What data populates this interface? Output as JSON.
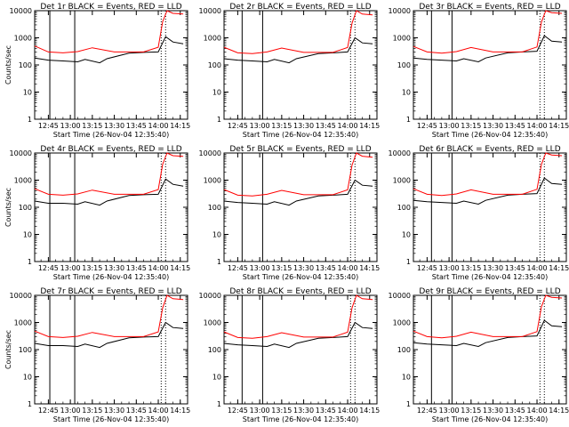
{
  "chart_data": [
    {
      "type": "line",
      "title": "Det 1r BLACK = Events, RED = LLD",
      "xlabel": "Start Time (26-Nov-04 12:35:40)",
      "ylabel": "Counts/sec",
      "yscale": "log",
      "ylim": [
        1,
        10000
      ],
      "xlim": [
        "12:35:40",
        "14:20:00"
      ],
      "xticks": [
        "12:45",
        "13:00",
        "13:15",
        "13:30",
        "13:45",
        "14:00",
        "14:15"
      ],
      "yticks": [
        "1",
        "10",
        "100",
        "1000",
        "10000"
      ],
      "grid": false,
      "vlines": {
        "solid": [
          "12:46",
          "13:03"
        ],
        "dotted": [
          "14:02",
          "14:05"
        ]
      },
      "series": [
        {
          "name": "Events",
          "color": "#000000",
          "x": [
            "12:35:40",
            "12:45",
            "12:55",
            "13:05",
            "13:10",
            "13:20",
            "13:25",
            "13:40",
            "13:50",
            "14:00",
            "14:05",
            "14:10",
            "14:17"
          ],
          "y": [
            180,
            150,
            140,
            130,
            160,
            120,
            170,
            270,
            290,
            300,
            1100,
            700,
            600
          ]
        },
        {
          "name": "LLD",
          "color": "#ff0000",
          "x": [
            "12:35:40",
            "12:45",
            "12:55",
            "13:05",
            "13:15",
            "13:30",
            "13:50",
            "14:00",
            "14:03",
            "14:06",
            "14:10",
            "14:17"
          ],
          "y": [
            500,
            300,
            280,
            310,
            430,
            300,
            300,
            450,
            4000,
            12000,
            8000,
            7500
          ]
        }
      ]
    },
    {
      "type": "line",
      "title": "Det 2r BLACK = Events, RED = LLD",
      "xlabel": "Start Time (26-Nov-04 12:35:40)",
      "ylabel": "",
      "yscale": "log",
      "ylim": [
        1,
        10000
      ],
      "xlim": [
        "12:35:40",
        "14:20:00"
      ],
      "xticks": [
        "12:45",
        "13:00",
        "13:15",
        "13:30",
        "13:45",
        "14:00",
        "14:15"
      ],
      "yticks": [
        "1",
        "10",
        "100",
        "1000",
        "10000"
      ],
      "grid": false,
      "vlines": {
        "solid": [
          "12:48",
          "13:02"
        ],
        "dotted": [
          "14:02",
          "14:05"
        ]
      },
      "series": [
        {
          "name": "Events",
          "color": "#000000",
          "x": [
            "12:35:40",
            "12:45",
            "12:55",
            "13:05",
            "13:10",
            "13:20",
            "13:25",
            "13:40",
            "13:50",
            "14:00",
            "14:05",
            "14:10",
            "14:17"
          ],
          "y": [
            170,
            150,
            140,
            130,
            160,
            120,
            170,
            260,
            280,
            300,
            1000,
            650,
            600
          ]
        },
        {
          "name": "LLD",
          "color": "#ff0000",
          "x": [
            "12:35:40",
            "12:45",
            "12:55",
            "13:05",
            "13:15",
            "13:30",
            "13:50",
            "14:00",
            "14:03",
            "14:06",
            "14:10",
            "14:17"
          ],
          "y": [
            450,
            280,
            260,
            300,
            420,
            290,
            290,
            440,
            3500,
            11000,
            7500,
            7000
          ]
        }
      ]
    },
    {
      "type": "line",
      "title": "Det 3r BLACK = Events, RED = LLD",
      "xlabel": "Start Time (26-Nov-04 12:35:40)",
      "ylabel": "",
      "yscale": "log",
      "ylim": [
        1,
        10000
      ],
      "xlim": [
        "12:35:40",
        "14:20:00"
      ],
      "xticks": [
        "12:45",
        "13:00",
        "13:15",
        "13:30",
        "13:45",
        "14:00",
        "14:15"
      ],
      "yticks": [
        "1",
        "10",
        "100",
        "1000",
        "10000"
      ],
      "grid": false,
      "vlines": {
        "solid": [
          "12:48",
          "13:02"
        ],
        "dotted": [
          "14:02",
          "14:05"
        ]
      },
      "series": [
        {
          "name": "Events",
          "color": "#000000",
          "x": [
            "12:35:40",
            "12:45",
            "12:55",
            "13:05",
            "13:10",
            "13:20",
            "13:25",
            "13:40",
            "13:50",
            "14:00",
            "14:05",
            "14:10",
            "14:17"
          ],
          "y": [
            180,
            160,
            150,
            140,
            170,
            130,
            180,
            280,
            300,
            320,
            1200,
            750,
            700
          ]
        },
        {
          "name": "LLD",
          "color": "#ff0000",
          "x": [
            "12:35:40",
            "12:45",
            "12:55",
            "13:05",
            "13:15",
            "13:30",
            "13:50",
            "14:00",
            "14:03",
            "14:06",
            "14:10",
            "14:17"
          ],
          "y": [
            480,
            300,
            270,
            310,
            440,
            300,
            300,
            460,
            3800,
            12000,
            8500,
            8000
          ]
        }
      ]
    },
    {
      "type": "line",
      "title": "Det 4r BLACK = Events, RED = LLD",
      "xlabel": "Start Time (26-Nov-04 12:35:40)",
      "ylabel": "Counts/sec",
      "yscale": "log",
      "ylim": [
        1,
        10000
      ],
      "xlim": [
        "12:35:40",
        "14:20:00"
      ],
      "xticks": [
        "12:45",
        "13:00",
        "13:15",
        "13:30",
        "13:45",
        "14:00",
        "14:15"
      ],
      "yticks": [
        "1",
        "10",
        "100",
        "1000",
        "10000"
      ],
      "grid": false,
      "vlines": {
        "solid": [
          "12:46",
          "13:03"
        ],
        "dotted": [
          "14:02",
          "14:05"
        ]
      },
      "series": [
        {
          "name": "Events",
          "color": "#000000",
          "x": [
            "12:35:40",
            "12:45",
            "12:55",
            "13:05",
            "13:10",
            "13:20",
            "13:25",
            "13:40",
            "13:50",
            "14:00",
            "14:05",
            "14:10",
            "14:17"
          ],
          "y": [
            170,
            140,
            140,
            130,
            160,
            120,
            170,
            270,
            290,
            300,
            1100,
            700,
            600
          ]
        },
        {
          "name": "LLD",
          "color": "#ff0000",
          "x": [
            "12:35:40",
            "12:45",
            "12:55",
            "13:05",
            "13:15",
            "13:30",
            "13:50",
            "14:00",
            "14:03",
            "14:06",
            "14:10",
            "14:17"
          ],
          "y": [
            480,
            300,
            280,
            310,
            430,
            300,
            300,
            450,
            3900,
            12000,
            8000,
            7500
          ]
        }
      ]
    },
    {
      "type": "line",
      "title": "Det 5r BLACK = Events, RED = LLD",
      "xlabel": "Start Time (26-Nov-04 12:35:40)",
      "ylabel": "",
      "yscale": "log",
      "ylim": [
        1,
        10000
      ],
      "xlim": [
        "12:35:40",
        "14:20:00"
      ],
      "xticks": [
        "12:45",
        "13:00",
        "13:15",
        "13:30",
        "13:45",
        "14:00",
        "14:15"
      ],
      "yticks": [
        "1",
        "10",
        "100",
        "1000",
        "10000"
      ],
      "grid": false,
      "vlines": {
        "solid": [
          "12:48",
          "13:02"
        ],
        "dotted": [
          "14:02",
          "14:05"
        ]
      },
      "series": [
        {
          "name": "Events",
          "color": "#000000",
          "x": [
            "12:35:40",
            "12:45",
            "12:55",
            "13:05",
            "13:10",
            "13:20",
            "13:25",
            "13:40",
            "13:50",
            "14:00",
            "14:05",
            "14:10",
            "14:17"
          ],
          "y": [
            170,
            150,
            140,
            130,
            160,
            120,
            170,
            260,
            280,
            300,
            1000,
            650,
            600
          ]
        },
        {
          "name": "LLD",
          "color": "#ff0000",
          "x": [
            "12:35:40",
            "12:45",
            "12:55",
            "13:05",
            "13:15",
            "13:30",
            "13:50",
            "14:00",
            "14:03",
            "14:06",
            "14:10",
            "14:17"
          ],
          "y": [
            450,
            280,
            260,
            300,
            420,
            290,
            290,
            440,
            3600,
            11000,
            7600,
            7000
          ]
        }
      ]
    },
    {
      "type": "line",
      "title": "Det 6r BLACK = Events, RED = LLD",
      "xlabel": "Start Time (26-Nov-04 12:35:40)",
      "ylabel": "",
      "yscale": "log",
      "ylim": [
        1,
        10000
      ],
      "xlim": [
        "12:35:40",
        "14:20:00"
      ],
      "xticks": [
        "12:45",
        "13:00",
        "13:15",
        "13:30",
        "13:45",
        "14:00",
        "14:15"
      ],
      "yticks": [
        "1",
        "10",
        "100",
        "1000",
        "10000"
      ],
      "grid": false,
      "vlines": {
        "solid": [
          "12:48",
          "13:02"
        ],
        "dotted": [
          "14:02",
          "14:05"
        ]
      },
      "series": [
        {
          "name": "Events",
          "color": "#000000",
          "x": [
            "12:35:40",
            "12:45",
            "12:55",
            "13:05",
            "13:10",
            "13:20",
            "13:25",
            "13:40",
            "13:50",
            "14:00",
            "14:05",
            "14:10",
            "14:17"
          ],
          "y": [
            180,
            160,
            150,
            140,
            170,
            130,
            180,
            280,
            300,
            320,
            1200,
            750,
            700
          ]
        },
        {
          "name": "LLD",
          "color": "#ff0000",
          "x": [
            "12:35:40",
            "12:45",
            "12:55",
            "13:05",
            "13:15",
            "13:30",
            "13:50",
            "14:00",
            "14:03",
            "14:06",
            "14:10",
            "14:17"
          ],
          "y": [
            480,
            300,
            270,
            310,
            440,
            300,
            300,
            460,
            3800,
            12000,
            8500,
            8000
          ]
        }
      ]
    },
    {
      "type": "line",
      "title": "Det 7r BLACK = Events, RED = LLD",
      "xlabel": "Start Time (26-Nov-04 12:35:40)",
      "ylabel": "Counts/sec",
      "yscale": "log",
      "ylim": [
        1,
        10000
      ],
      "xlim": [
        "12:35:40",
        "14:20:00"
      ],
      "xticks": [
        "12:45",
        "13:00",
        "13:15",
        "13:30",
        "13:45",
        "14:00",
        "14:15"
      ],
      "yticks": [
        "1",
        "10",
        "100",
        "1000",
        "10000"
      ],
      "grid": false,
      "vlines": {
        "solid": [
          "12:46",
          "13:03"
        ],
        "dotted": [
          "14:02",
          "14:05"
        ]
      },
      "series": [
        {
          "name": "Events",
          "color": "#000000",
          "x": [
            "12:35:40",
            "12:45",
            "12:55",
            "13:05",
            "13:10",
            "13:20",
            "13:25",
            "13:40",
            "13:50",
            "14:00",
            "14:05",
            "14:10",
            "14:17"
          ],
          "y": [
            170,
            140,
            140,
            130,
            160,
            120,
            170,
            270,
            290,
            300,
            1000,
            650,
            600
          ]
        },
        {
          "name": "LLD",
          "color": "#ff0000",
          "x": [
            "12:35:40",
            "12:45",
            "12:55",
            "13:05",
            "13:15",
            "13:30",
            "13:50",
            "14:00",
            "14:03",
            "14:06",
            "14:10",
            "14:17"
          ],
          "y": [
            480,
            300,
            280,
            310,
            430,
            300,
            300,
            450,
            3500,
            11000,
            7500,
            7000
          ]
        }
      ]
    },
    {
      "type": "line",
      "title": "Det 8r BLACK = Events, RED = LLD",
      "xlabel": "Start Time (26-Nov-04 12:35:40)",
      "ylabel": "",
      "yscale": "log",
      "ylim": [
        1,
        10000
      ],
      "xlim": [
        "12:35:40",
        "14:20:00"
      ],
      "xticks": [
        "12:45",
        "13:00",
        "13:15",
        "13:30",
        "13:45",
        "14:00",
        "14:15"
      ],
      "yticks": [
        "1",
        "10",
        "100",
        "1000",
        "10000"
      ],
      "grid": false,
      "vlines": {
        "solid": [
          "12:48",
          "13:02"
        ],
        "dotted": [
          "14:02",
          "14:05"
        ]
      },
      "series": [
        {
          "name": "Events",
          "color": "#000000",
          "x": [
            "12:35:40",
            "12:45",
            "12:55",
            "13:05",
            "13:10",
            "13:20",
            "13:25",
            "13:40",
            "13:50",
            "14:00",
            "14:05",
            "14:10",
            "14:17"
          ],
          "y": [
            170,
            150,
            140,
            130,
            160,
            120,
            170,
            260,
            280,
            300,
            1000,
            650,
            600
          ]
        },
        {
          "name": "LLD",
          "color": "#ff0000",
          "x": [
            "12:35:40",
            "12:45",
            "12:55",
            "13:05",
            "13:15",
            "13:30",
            "13:50",
            "14:00",
            "14:03",
            "14:06",
            "14:10",
            "14:17"
          ],
          "y": [
            450,
            280,
            260,
            300,
            420,
            290,
            290,
            440,
            3500,
            11000,
            7500,
            7000
          ]
        }
      ]
    },
    {
      "type": "line",
      "title": "Det 9r BLACK = Events, RED = LLD",
      "xlabel": "Start Time (26-Nov-04 12:35:40)",
      "ylabel": "",
      "yscale": "log",
      "ylim": [
        1,
        10000
      ],
      "xlim": [
        "12:35:40",
        "14:20:00"
      ],
      "xticks": [
        "12:45",
        "13:00",
        "13:15",
        "13:30",
        "13:45",
        "14:00",
        "14:15"
      ],
      "yticks": [
        "1",
        "10",
        "100",
        "1000",
        "10000"
      ],
      "grid": false,
      "vlines": {
        "solid": [
          "12:48",
          "13:02"
        ],
        "dotted": [
          "14:02",
          "14:05"
        ]
      },
      "series": [
        {
          "name": "Events",
          "color": "#000000",
          "x": [
            "12:35:40",
            "12:45",
            "12:55",
            "13:05",
            "13:10",
            "13:20",
            "13:25",
            "13:40",
            "13:50",
            "14:00",
            "14:05",
            "14:10",
            "14:17"
          ],
          "y": [
            180,
            160,
            150,
            140,
            170,
            130,
            180,
            280,
            300,
            320,
            1200,
            750,
            700
          ]
        },
        {
          "name": "LLD",
          "color": "#ff0000",
          "x": [
            "12:35:40",
            "12:45",
            "12:55",
            "13:05",
            "13:15",
            "13:30",
            "13:50",
            "14:00",
            "14:03",
            "14:06",
            "14:10",
            "14:17"
          ],
          "y": [
            480,
            300,
            270,
            310,
            440,
            300,
            300,
            460,
            3800,
            12000,
            8500,
            8000
          ]
        }
      ]
    }
  ]
}
